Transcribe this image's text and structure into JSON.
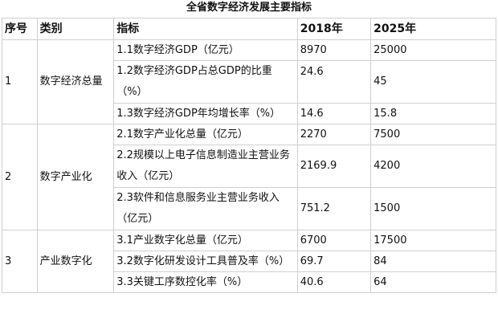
{
  "title": "全省数字经济发展主要指标",
  "headers": [
    "序号",
    "类别",
    "指标",
    "2018年",
    "2025年"
  ],
  "groups": [
    {
      "seq": "1",
      "category": "数字经济总量",
      "rows": [
        {
          "indicator": "1.1数字经济GDP（亿元）",
          "y2018": "8970",
          "y2025": "25000"
        },
        {
          "indicator": "1.2数字经济GDP占总GDP的比重（%）",
          "y2018": "24.6",
          "y2025": "45"
        },
        {
          "indicator": "1.3数字经济GDP年均增长率（%）",
          "y2018": "14.6",
          "y2025": "15.8"
        }
      ]
    },
    {
      "seq": "2",
      "category": "数字产业化",
      "rows": [
        {
          "indicator": "2.1数字产业化总量（亿元）",
          "y2018": "2270",
          "y2025": "7500"
        },
        {
          "indicator": "2.2规模以上电子信息制造业主营业务收入（亿元）",
          "y2018": "2169.9",
          "y2025": "4200"
        },
        {
          "indicator": "2.3软件和信息服务业主营业务收入（亿元）",
          "y2018": "751.2",
          "y2025": "1500"
        }
      ]
    },
    {
      "seq": "3",
      "category": "产业数字化",
      "rows": [
        {
          "indicator": "3.1产业数字化总量（亿元）",
          "y2018": "6700",
          "y2025": "17500"
        },
        {
          "indicator": "3.2数字化研发设计工具普及率（%）",
          "y2018": "69.7",
          "y2025": "84"
        },
        {
          "indicator": "3.3关键工序数控化率（%）",
          "y2018": "40.6",
          "y2025": "64"
        }
      ]
    }
  ]
}
